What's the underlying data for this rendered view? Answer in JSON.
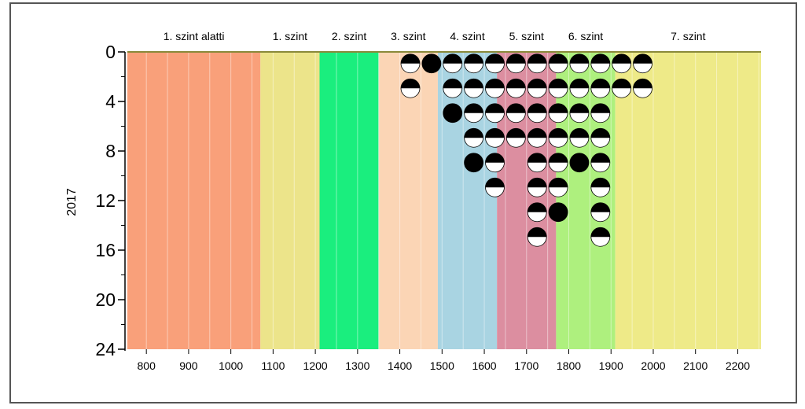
{
  "chart_data": {
    "type": "scatter",
    "title": "",
    "xlabel": "",
    "ylabel": "2017",
    "xlim": [
      755,
      2255
    ],
    "ylim": [
      0,
      24
    ],
    "y_inverted": true,
    "x_ticks": [
      800,
      900,
      1000,
      1100,
      1200,
      1300,
      1400,
      1500,
      1600,
      1700,
      1800,
      1900,
      2000,
      2100,
      2200
    ],
    "y_ticks": [
      0,
      4,
      8,
      12,
      16,
      20,
      24
    ],
    "grid": "vertical",
    "bands": [
      {
        "label": "1. szint alatti",
        "from": 755,
        "to": 1070,
        "color": "#f9a07a"
      },
      {
        "label": "1. szint",
        "from": 1070,
        "to": 1210,
        "color": "#ece48a"
      },
      {
        "label": "2. szint",
        "from": 1210,
        "to": 1350,
        "color": "#1aee7e"
      },
      {
        "label": "3. szint",
        "from": 1350,
        "to": 1490,
        "color": "#fbd5b5"
      },
      {
        "label": "4. szint",
        "from": 1490,
        "to": 1630,
        "color": "#a9d4e2"
      },
      {
        "label": "5. szint",
        "from": 1630,
        "to": 1770,
        "color": "#dc8ea0"
      },
      {
        "label": "6. szint",
        "from": 1770,
        "to": 1910,
        "color": "#aef07e"
      },
      {
        "label": "7. szint",
        "from": 1910,
        "to": 2255,
        "color": "#eeea88"
      }
    ],
    "columns": [
      {
        "x": 1425,
        "count": 2
      },
      {
        "x": 1475,
        "count": 1
      },
      {
        "x": 1525,
        "count": 3
      },
      {
        "x": 1575,
        "count": 5
      },
      {
        "x": 1625,
        "count": 6
      },
      {
        "x": 1675,
        "count": 4
      },
      {
        "x": 1725,
        "count": 8
      },
      {
        "x": 1775,
        "count": 7
      },
      {
        "x": 1825,
        "count": 5
      },
      {
        "x": 1875,
        "count": 8
      },
      {
        "x": 1925,
        "count": 2
      },
      {
        "x": 1975,
        "count": 2
      }
    ]
  }
}
